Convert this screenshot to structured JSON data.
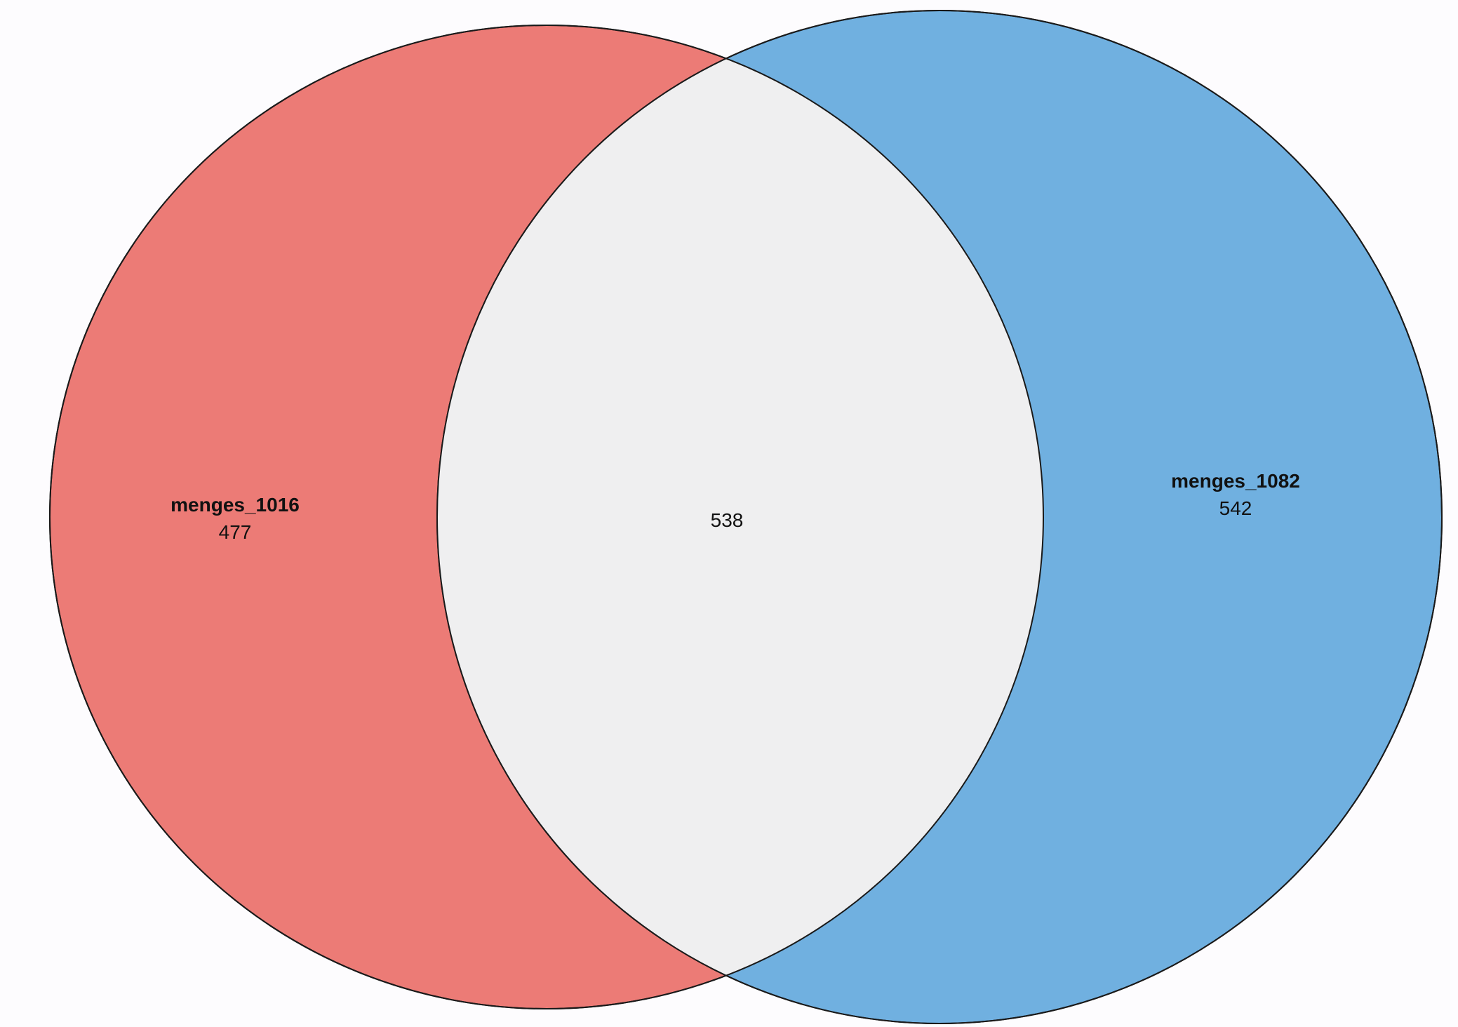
{
  "diagram": {
    "type": "venn",
    "sets": [
      {
        "name": "menges_1016",
        "only_count": "477",
        "color": "#EC7B76"
      },
      {
        "name": "menges_1082",
        "only_count": "542",
        "color": "#70B0E0"
      }
    ],
    "intersection": {
      "count": "538",
      "color": "#EFEFF0"
    },
    "outline_color": "#1a1a1a",
    "background": "#FDFCFE"
  }
}
